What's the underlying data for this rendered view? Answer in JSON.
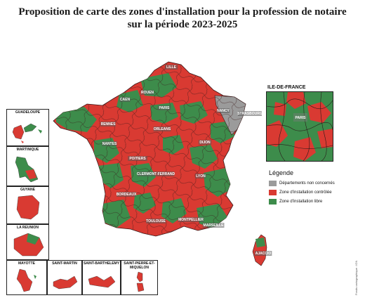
{
  "title_line1": "Proposition de carte des zones d'installation pour la profession de notaire",
  "title_line2": "sur la période 2023-2025",
  "colors": {
    "controlled": "#d93a32",
    "free": "#3d8c4b",
    "not_concerned": "#9b9b9b",
    "borders": "#3a1a1a"
  },
  "cities": [
    "LILLE",
    "ROUEN",
    "CAEN",
    "PARIS",
    "NANCY",
    "STRASBOURG",
    "RENNES",
    "ORLEANS",
    "DIJON",
    "NANTES",
    "POITIERS",
    "CLERMONT-FERRAND",
    "LYON",
    "BORDEAUX",
    "TOULOUSE",
    "MONTPELLIER",
    "MARSEILLE",
    "AJACCIO"
  ],
  "ile_de_france": {
    "title": "ILE-DE-FRANCE",
    "city": "PARIS"
  },
  "legend": {
    "title": "Légende",
    "items": [
      {
        "label": "Départements non concernés",
        "color": "#9b9b9b"
      },
      {
        "label": "Zone d'installation contrôlée",
        "color": "#d93a32"
      },
      {
        "label": "Zone d'installation libre",
        "color": "#3d8c4b"
      }
    ]
  },
  "overseas": [
    {
      "label": "GUADELOUPE"
    },
    {
      "label": "MARTINIQUE"
    },
    {
      "label": "GUYANE"
    },
    {
      "label": "LA REUNION"
    },
    {
      "label": "MAYOTTE"
    },
    {
      "label": "SAINT-MARTIN"
    },
    {
      "label": "SAINT-BARTHELEMY"
    },
    {
      "label": "SAINT-PIERRE-ET-MIQUELON"
    }
  ],
  "credit": "Fonds cartographique : IGN"
}
